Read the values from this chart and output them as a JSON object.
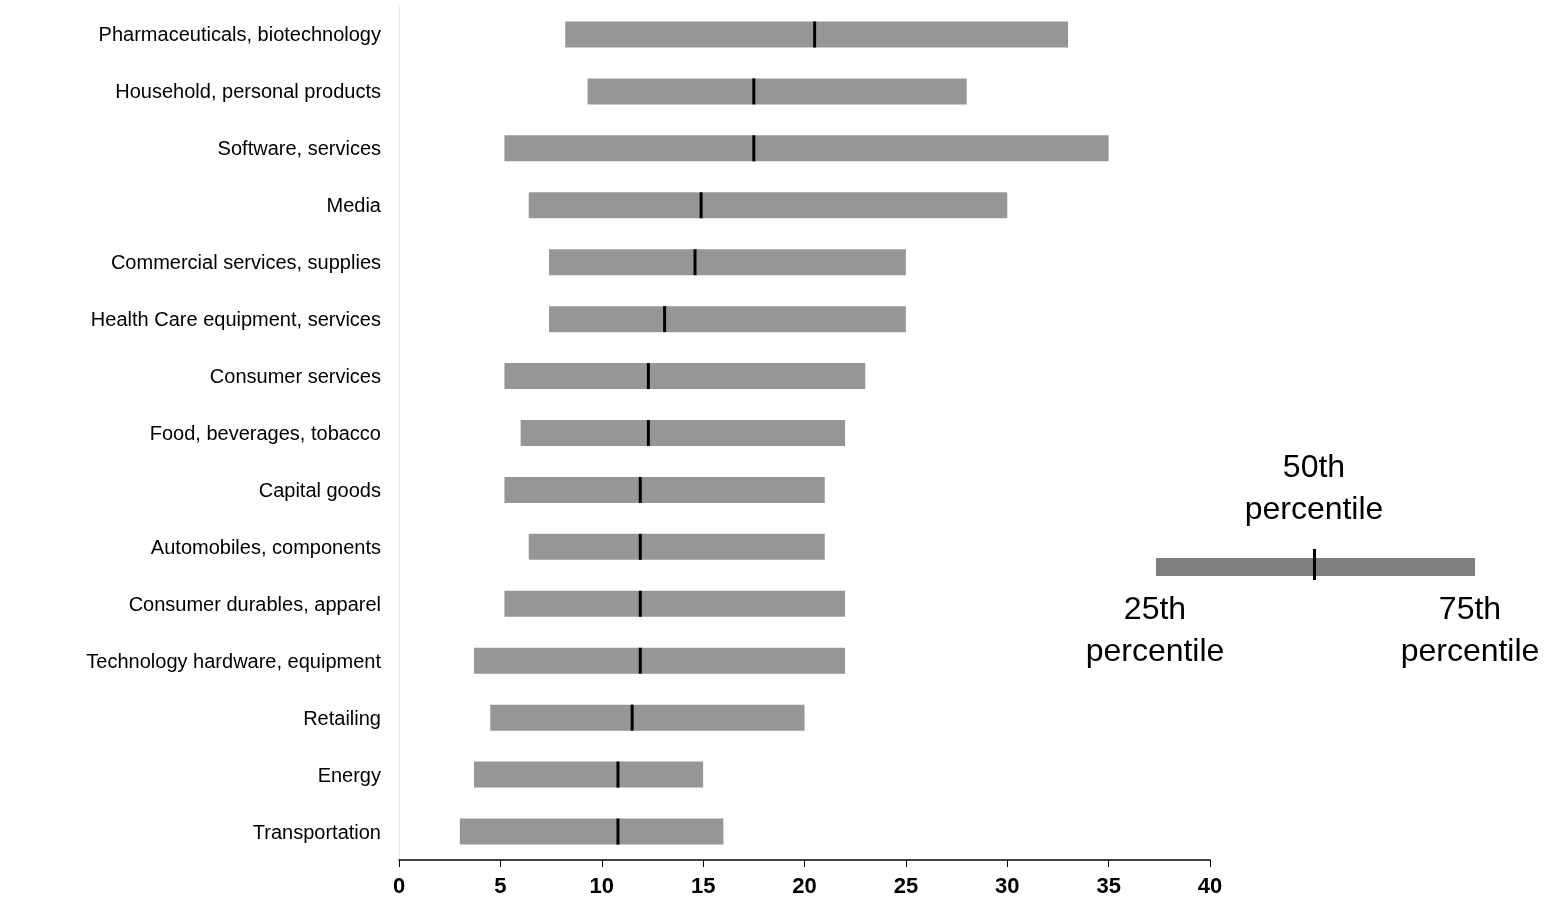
{
  "chart_data": {
    "type": "box",
    "orientation": "horizontal",
    "categories": [
      "Pharmaceuticals, biotechnology",
      "Household, personal products",
      "Software, services",
      "Media",
      "Commercial services, supplies",
      "Health Care equipment, services",
      "Consumer services",
      "Food, beverages, tobacco",
      "Capital goods",
      "Automobiles, components",
      "Consumer durables, apparel",
      "Technology hardware, equipment",
      "Retailing",
      "Energy",
      "Transportation"
    ],
    "series": [
      {
        "color": "#969696",
        "boxes": [
          {
            "low": 8.2,
            "q1": 8.2,
            "median": 20.5,
            "q3": 33.0,
            "high": 33.0
          },
          {
            "low": 9.3,
            "q1": 9.3,
            "median": 17.5,
            "q3": 28.0,
            "high": 28.0
          },
          {
            "low": 5.2,
            "q1": 5.2,
            "median": 17.5,
            "q3": 35.0,
            "high": 35.0
          },
          {
            "low": 6.4,
            "q1": 6.4,
            "median": 14.9,
            "q3": 30.0,
            "high": 30.0
          },
          {
            "low": 7.4,
            "q1": 7.4,
            "median": 14.6,
            "q3": 25.0,
            "high": 25.0
          },
          {
            "low": 7.4,
            "q1": 7.4,
            "median": 13.1,
            "q3": 25.0,
            "high": 25.0
          },
          {
            "low": 5.2,
            "q1": 5.2,
            "median": 12.3,
            "q3": 23.0,
            "high": 23.0
          },
          {
            "low": 6.0,
            "q1": 6.0,
            "median": 12.3,
            "q3": 22.0,
            "high": 22.0
          },
          {
            "low": 5.2,
            "q1": 5.2,
            "median": 11.9,
            "q3": 21.0,
            "high": 21.0
          },
          {
            "low": 6.4,
            "q1": 6.4,
            "median": 11.9,
            "q3": 21.0,
            "high": 21.0
          },
          {
            "low": 5.2,
            "q1": 5.2,
            "median": 11.9,
            "q3": 22.0,
            "high": 22.0
          },
          {
            "low": 3.7,
            "q1": 3.7,
            "median": 11.9,
            "q3": 22.0,
            "high": 22.0
          },
          {
            "low": 4.5,
            "q1": 4.5,
            "median": 11.5,
            "q3": 20.0,
            "high": 20.0
          },
          {
            "low": 3.7,
            "q1": 3.7,
            "median": 10.8,
            "q3": 15.0,
            "high": 15.0
          },
          {
            "low": 3.0,
            "q1": 3.0,
            "median": 10.8,
            "q3": 16.0,
            "high": 16.0
          }
        ]
      }
    ],
    "xlim": [
      0,
      40
    ],
    "xticks": [
      0,
      5,
      10,
      15,
      20,
      25,
      30,
      35,
      40
    ],
    "annotations": [
      "50th percentile",
      "25th percentile",
      "75th percentile"
    ]
  }
}
